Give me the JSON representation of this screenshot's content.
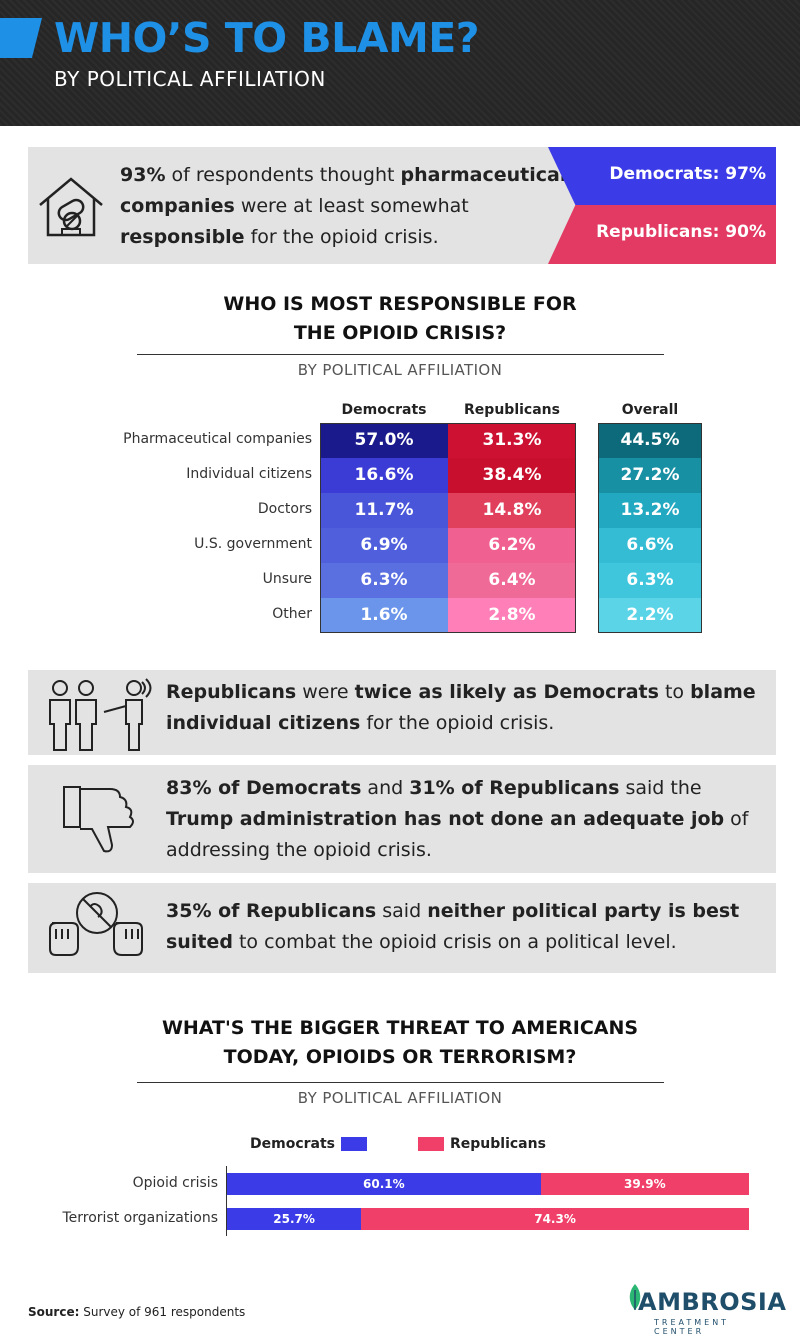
{
  "header": {
    "title": "WHO’S TO BLAME?",
    "subtitle": "BY POLITICAL AFFILIATION"
  },
  "top_stat": {
    "pct": "93%",
    "t1": " of respondents thought ",
    "b1": "pharmaceutical companies",
    "t2": " were at least somewhat ",
    "b2": "responsible",
    "t3": " for the opioid crisis.",
    "democrats": "Democrats: 97%",
    "republicans": "Republicans: 90%"
  },
  "responsibility": {
    "title_line1": "WHO IS MOST RESPONSIBLE FOR",
    "title_line2": "THE OPIOID CRISIS?",
    "subtitle": "BY POLITICAL AFFILIATION"
  },
  "facts": [
    {
      "parts": [
        "Republicans",
        " were ",
        "twice as likely as Democrats",
        " to ",
        "blame individual citizens",
        " for the opioid crisis."
      ]
    },
    {
      "parts": [
        "83% of Democrats",
        " and ",
        "31% of Republicans",
        " said the ",
        "Trump administration has not done an adequate job",
        " of addressing the opioid crisis."
      ]
    },
    {
      "parts": [
        "35% of Republicans",
        " said ",
        "neither political party is best suited",
        " to combat the opioid crisis on a political level."
      ]
    }
  ],
  "threat": {
    "title_line1": "WHAT'S THE BIGGER THREAT TO AMERICANS",
    "title_line2": "TODAY, OPIOIDS OR TERRORISM?",
    "subtitle": "BY POLITICAL AFFILIATION"
  },
  "footer": {
    "source_label": "Source:",
    "source_text": " Survey of 961 respondents",
    "logo_main": "AMBROSIA",
    "logo_sub": "TREATMENT CENTER"
  },
  "colors": {
    "accent_blue": "#1e90e6",
    "democrat": "#3b3be8",
    "republican": "#e23a62"
  },
  "chart_data": [
    {
      "type": "table",
      "columns": [
        "Democrats",
        "Republicans",
        "Overall"
      ],
      "rows": [
        "Pharmaceutical companies",
        "Individual citizens",
        "Doctors",
        "U.S. government",
        "Unsure",
        "Other"
      ],
      "values": {
        "Democrats": [
          57.0,
          16.6,
          11.7,
          6.9,
          6.3,
          1.6
        ],
        "Republicans": [
          31.3,
          38.4,
          14.8,
          6.2,
          6.4,
          2.8
        ],
        "Overall": [
          44.5,
          27.2,
          13.2,
          6.6,
          6.3,
          2.2
        ]
      },
      "cell_colors": {
        "Democrats": [
          "#1a1a8c",
          "#3b3bd6",
          "#4a56d9",
          "#5060dc",
          "#5a6fe0",
          "#6a95ea"
        ],
        "Republicans": [
          "#cc1133",
          "#c80f2e",
          "#e0405c",
          "#f06090",
          "#f06a98",
          "#ff80b8"
        ],
        "Overall": [
          "#0d6a7a",
          "#1890a4",
          "#22a8c0",
          "#34bcd4",
          "#40c6dc",
          "#5ad4e6"
        ]
      }
    },
    {
      "type": "bar",
      "stacked": true,
      "orientation": "horizontal",
      "categories": [
        "Opioid crisis",
        "Terrorist organizations"
      ],
      "series": [
        {
          "name": "Democrats",
          "values": [
            60.1,
            25.7
          ],
          "color": "#3b3be8"
        },
        {
          "name": "Republicans",
          "values": [
            39.9,
            74.3
          ],
          "color": "#f0406a"
        }
      ],
      "xlim": [
        0,
        100
      ]
    }
  ]
}
